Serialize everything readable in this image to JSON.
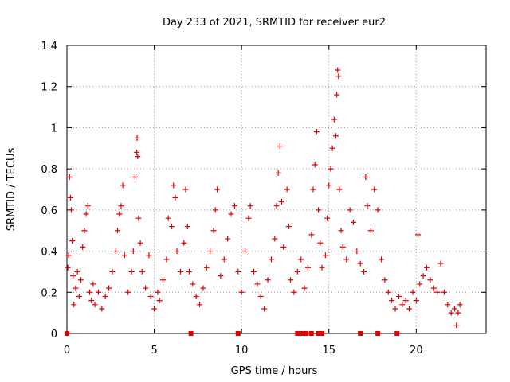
{
  "chart_data": {
    "type": "scatter",
    "title": "Day 233 of 2021, SRMTID for receiver eur2",
    "xlabel": "GPS time / hours",
    "ylabel": "SRMTID / TECUs",
    "xlim": [
      0,
      24
    ],
    "ylim": [
      0,
      1.4
    ],
    "x_ticks": [
      "0",
      "5",
      "10",
      "15",
      "20"
    ],
    "y_ticks": [
      "0",
      "0.2",
      "0.4",
      "0.6",
      "0.8",
      "1",
      "1.2",
      "1.4"
    ],
    "grid": true,
    "legend": "none",
    "colors": {
      "marker": "#e00000",
      "grid": "#999999",
      "axis": "#000000"
    },
    "series": [
      {
        "name": "SRMTID",
        "marker": "plus",
        "points": [
          [
            0.05,
            0.32
          ],
          [
            0.1,
            0.38
          ],
          [
            0.15,
            0.76
          ],
          [
            0.2,
            0.66
          ],
          [
            0.25,
            0.6
          ],
          [
            0.3,
            0.45
          ],
          [
            0.35,
            0.28
          ],
          [
            0.4,
            0.14
          ],
          [
            0.5,
            0.22
          ],
          [
            0.6,
            0.3
          ],
          [
            0.7,
            0.18
          ],
          [
            0.8,
            0.26
          ],
          [
            0.9,
            0.42
          ],
          [
            1.0,
            0.5
          ],
          [
            1.1,
            0.58
          ],
          [
            1.2,
            0.62
          ],
          [
            1.3,
            0.2
          ],
          [
            1.4,
            0.16
          ],
          [
            1.5,
            0.24
          ],
          [
            1.6,
            0.14
          ],
          [
            1.8,
            0.2
          ],
          [
            2.0,
            0.12
          ],
          [
            2.2,
            0.18
          ],
          [
            2.4,
            0.22
          ],
          [
            2.6,
            0.3
          ],
          [
            2.8,
            0.4
          ],
          [
            2.9,
            0.5
          ],
          [
            3.0,
            0.58
          ],
          [
            3.1,
            0.62
          ],
          [
            3.2,
            0.72
          ],
          [
            3.3,
            0.38
          ],
          [
            3.5,
            0.2
          ],
          [
            3.7,
            0.3
          ],
          [
            3.8,
            0.4
          ],
          [
            3.9,
            0.76
          ],
          [
            4.0,
            0.88
          ],
          [
            4.02,
            0.95
          ],
          [
            4.05,
            0.86
          ],
          [
            4.1,
            0.56
          ],
          [
            4.2,
            0.44
          ],
          [
            4.3,
            0.3
          ],
          [
            4.5,
            0.22
          ],
          [
            4.7,
            0.38
          ],
          [
            4.8,
            0.18
          ],
          [
            5.0,
            0.12
          ],
          [
            5.2,
            0.2
          ],
          [
            5.3,
            0.16
          ],
          [
            5.5,
            0.26
          ],
          [
            5.7,
            0.36
          ],
          [
            5.8,
            0.56
          ],
          [
            6.0,
            0.52
          ],
          [
            6.1,
            0.72
          ],
          [
            6.2,
            0.66
          ],
          [
            6.3,
            0.4
          ],
          [
            6.5,
            0.3
          ],
          [
            6.7,
            0.44
          ],
          [
            6.8,
            0.7
          ],
          [
            6.9,
            0.52
          ],
          [
            7.0,
            0.3
          ],
          [
            7.2,
            0.24
          ],
          [
            7.4,
            0.18
          ],
          [
            7.6,
            0.14
          ],
          [
            7.8,
            0.22
          ],
          [
            8.0,
            0.32
          ],
          [
            8.2,
            0.4
          ],
          [
            8.4,
            0.5
          ],
          [
            8.5,
            0.6
          ],
          [
            8.6,
            0.7
          ],
          [
            8.8,
            0.28
          ],
          [
            9.0,
            0.36
          ],
          [
            9.2,
            0.46
          ],
          [
            9.4,
            0.58
          ],
          [
            9.6,
            0.62
          ],
          [
            9.8,
            0.3
          ],
          [
            10.0,
            0.2
          ],
          [
            10.2,
            0.4
          ],
          [
            10.4,
            0.56
          ],
          [
            10.5,
            0.62
          ],
          [
            10.7,
            0.3
          ],
          [
            10.9,
            0.24
          ],
          [
            11.1,
            0.18
          ],
          [
            11.3,
            0.12
          ],
          [
            11.5,
            0.26
          ],
          [
            11.7,
            0.36
          ],
          [
            11.9,
            0.46
          ],
          [
            12.0,
            0.62
          ],
          [
            12.1,
            0.78
          ],
          [
            12.2,
            0.91
          ],
          [
            12.3,
            0.64
          ],
          [
            12.4,
            0.42
          ],
          [
            12.6,
            0.7
          ],
          [
            12.7,
            0.52
          ],
          [
            12.8,
            0.26
          ],
          [
            13.0,
            0.2
          ],
          [
            13.2,
            0.3
          ],
          [
            13.4,
            0.36
          ],
          [
            13.6,
            0.22
          ],
          [
            13.8,
            0.32
          ],
          [
            14.0,
            0.48
          ],
          [
            14.1,
            0.7
          ],
          [
            14.2,
            0.82
          ],
          [
            14.3,
            0.98
          ],
          [
            14.4,
            0.6
          ],
          [
            14.5,
            0.44
          ],
          [
            14.6,
            0.32
          ],
          [
            14.8,
            0.38
          ],
          [
            14.9,
            0.56
          ],
          [
            15.0,
            0.72
          ],
          [
            15.1,
            0.8
          ],
          [
            15.2,
            0.9
          ],
          [
            15.3,
            1.04
          ],
          [
            15.4,
            0.96
          ],
          [
            15.45,
            1.16
          ],
          [
            15.5,
            1.28
          ],
          [
            15.55,
            1.25
          ],
          [
            15.6,
            0.7
          ],
          [
            15.7,
            0.5
          ],
          [
            15.8,
            0.42
          ],
          [
            16.0,
            0.36
          ],
          [
            16.2,
            0.6
          ],
          [
            16.4,
            0.54
          ],
          [
            16.6,
            0.4
          ],
          [
            16.8,
            0.34
          ],
          [
            17.0,
            0.3
          ],
          [
            17.1,
            0.76
          ],
          [
            17.2,
            0.62
          ],
          [
            17.4,
            0.5
          ],
          [
            17.6,
            0.7
          ],
          [
            17.8,
            0.6
          ],
          [
            18.0,
            0.36
          ],
          [
            18.2,
            0.26
          ],
          [
            18.4,
            0.2
          ],
          [
            18.6,
            0.16
          ],
          [
            18.8,
            0.12
          ],
          [
            19.0,
            0.18
          ],
          [
            19.2,
            0.14
          ],
          [
            19.4,
            0.16
          ],
          [
            19.6,
            0.12
          ],
          [
            19.8,
            0.2
          ],
          [
            20.0,
            0.16
          ],
          [
            20.1,
            0.48
          ],
          [
            20.2,
            0.24
          ],
          [
            20.4,
            0.28
          ],
          [
            20.6,
            0.32
          ],
          [
            20.8,
            0.26
          ],
          [
            21.0,
            0.22
          ],
          [
            21.2,
            0.2
          ],
          [
            21.4,
            0.34
          ],
          [
            21.6,
            0.2
          ],
          [
            21.8,
            0.14
          ],
          [
            22.0,
            0.1
          ],
          [
            22.2,
            0.12
          ],
          [
            22.3,
            0.04
          ],
          [
            22.4,
            0.1
          ],
          [
            22.5,
            0.14
          ]
        ]
      }
    ],
    "zero_markers_x": [
      0.0,
      7.1,
      9.8,
      13.2,
      13.5,
      13.7,
      14.0,
      14.4,
      14.6,
      16.8,
      17.8,
      18.9
    ]
  }
}
